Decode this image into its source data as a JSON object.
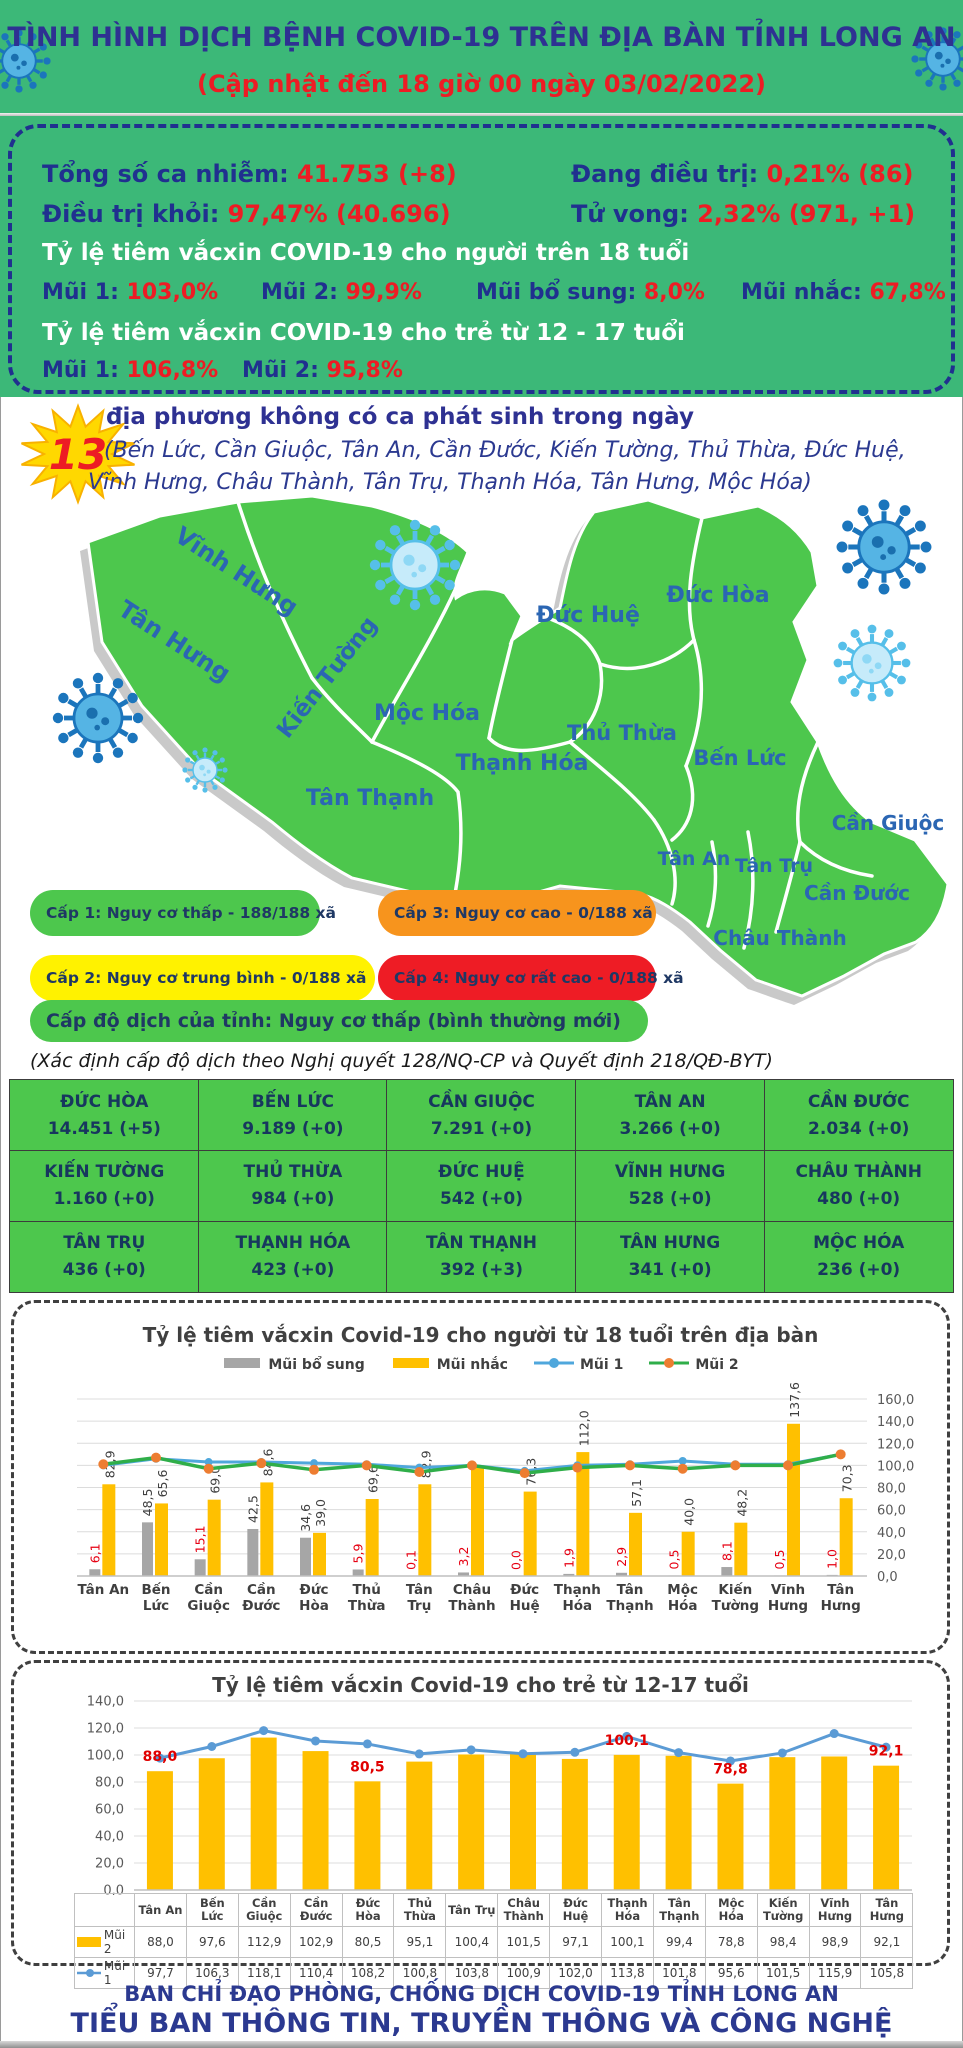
{
  "header": {
    "title": "TÌNH HÌNH DỊCH BỆNH COVID-19 TRÊN ĐỊA BÀN TỈNH LONG AN",
    "subtitle": "(Cập nhật đến 18 giờ 00 ngày 03/02/2022)",
    "bg_color": "#3cb878",
    "title_color": "#2e3192",
    "accent_red": "#ed1c24"
  },
  "stats": {
    "items": [
      {
        "label": "Tổng số ca nhiễm:",
        "value": "41.753 (+8)"
      },
      {
        "label": "Đang điều trị:",
        "value": "0,21% (86)"
      },
      {
        "label": "Điều trị khỏi:",
        "value": "97,47% (40.696)"
      },
      {
        "label": "Tử vong:",
        "value": "2,32% (971, +1)"
      }
    ],
    "adult_title": "Tỷ lệ tiêm vắcxin COVID-19 cho người trên 18 tuổi",
    "adult_doses": [
      {
        "label": "Mũi 1:",
        "value": "103,0%"
      },
      {
        "label": "Mũi 2:",
        "value": "99,9%"
      },
      {
        "label": "Mũi bổ sung:",
        "value": "8,0%"
      },
      {
        "label": "Mũi nhắc:",
        "value": "67,8%"
      }
    ],
    "child_title": "Tỷ lệ tiêm vắcxin COVID-19 cho trẻ từ 12 - 17 tuổi",
    "child_doses": [
      {
        "label": "Mũi 1:",
        "value": "106,8%"
      },
      {
        "label": "Mũi 2:",
        "value": "95,8%"
      }
    ]
  },
  "no_new_cases": {
    "count": "13",
    "title": "địa phương không có ca phát sinh trong ngày",
    "lines": [
      "(Bến Lức, Cần Giuộc, Tân An, Cần Đước, Kiến Tường, Thủ Thừa, Đức Huệ,",
      "Vĩnh Hưng, Châu Thành, Tân Trụ, Thạnh Hóa, Tân Hưng, Mộc Hóa)"
    ]
  },
  "map": {
    "district_labels": [
      "Tân Hưng",
      "Vĩnh Hưng",
      "Kiến Tường",
      "Mộc Hóa",
      "Tân Thạnh",
      "Thạnh Hóa",
      "Đức Huệ",
      "Đức Hòa",
      "Thủ Thừa",
      "Bến Lức",
      "Tân An",
      "Tân Trụ",
      "Châu Thành",
      "Cần Giuộc",
      "Cần Đước"
    ],
    "fill_color": "#4dc74d",
    "label_color": "#2b66b3"
  },
  "risk_legend": {
    "items": [
      {
        "text": "Cấp 1: Nguy cơ thấp - 188/188 xã",
        "color": "#4dc74d"
      },
      {
        "text": "Cấp 3: Nguy cơ cao - 0/188 xã",
        "color": "#f7941d"
      },
      {
        "text": "Cấp 2: Nguy cơ trung bình - 0/188 xã",
        "color": "#fff200"
      },
      {
        "text": "Cấp 4: Nguy cơ rất cao - 0/188 xã",
        "color": "#ee1c25"
      }
    ],
    "overall": {
      "text": "Cấp độ dịch của tỉnh: Nguy cơ thấp (bình thường mới)",
      "color": "#4dc74d"
    },
    "note": "(Xác định cấp độ dịch theo Nghị quyết 128/NQ-CP và Quyết định 218/QĐ-BYT)"
  },
  "district_table": {
    "cells": [
      {
        "name": "ĐỨC HÒA",
        "value": "14.451 (+5)"
      },
      {
        "name": "BẾN LỨC",
        "value": "9.189 (+0)"
      },
      {
        "name": "CẦN GIUỘC",
        "value": "7.291 (+0)"
      },
      {
        "name": "TÂN AN",
        "value": "3.266 (+0)"
      },
      {
        "name": "CẦN ĐƯỚC",
        "value": "2.034 (+0)"
      },
      {
        "name": "KIẾN TƯỜNG",
        "value": "1.160 (+0)"
      },
      {
        "name": "THỦ THỪA",
        "value": "984 (+0)"
      },
      {
        "name": "ĐỨC HUỆ",
        "value": "542 (+0)"
      },
      {
        "name": "VĨNH HƯNG",
        "value": "528 (+0)"
      },
      {
        "name": "CHÂU THÀNH",
        "value": "480 (+0)"
      },
      {
        "name": "TÂN TRỤ",
        "value": "436 (+0)"
      },
      {
        "name": "THẠNH HÓA",
        "value": "423 (+0)"
      },
      {
        "name": "TÂN THẠNH",
        "value": "392 (+3)"
      },
      {
        "name": "TÂN HƯNG",
        "value": "341 (+0)"
      },
      {
        "name": "MỘC HÓA",
        "value": "236 (+0)"
      }
    ]
  },
  "chart_data": [
    {
      "type": "bar+line",
      "title": "Tỷ lệ tiêm vắcxin Covid-19 cho người từ 18 tuổi trên địa bàn",
      "categories": [
        "Tân An",
        "Bến Lức",
        "Cần Giuộc",
        "Cần Đước",
        "Đức Hòa",
        "Thủ Thừa",
        "Tân Trụ",
        "Châu Thành",
        "Đức Huệ",
        "Thạnh Hóa",
        "Tân Thạnh",
        "Mộc Hóa",
        "Kiến Tường",
        "Vĩnh Hưng",
        "Tân Hưng"
      ],
      "ylim": [
        0,
        160
      ],
      "ytick_labels": [
        "0,0",
        "20,0",
        "40,0",
        "60,0",
        "80,0",
        "100,0",
        "120,0",
        "140,0",
        "160,0"
      ],
      "axis_side": "right",
      "grid": true,
      "legend_position": "top",
      "series": [
        {
          "name": "Mũi bổ sung",
          "type": "bar",
          "color": "#A6A6A6",
          "values": [
            6.1,
            48.5,
            15.1,
            42.5,
            34.6,
            5.9,
            0.1,
            3.2,
            0.0,
            1.9,
            2.9,
            0.5,
            8.1,
            0.5,
            1.0
          ],
          "labels": [
            "6,1",
            "48,5",
            "15,1",
            "42,5",
            "34,6",
            "5,9",
            "0,1",
            "3,2",
            "0,0",
            "1,9",
            "2,9",
            "0,5",
            "8,1",
            "0,5",
            "1,0"
          ]
        },
        {
          "name": "Mũi nhắc",
          "type": "bar",
          "color": "#FFC000",
          "values": [
            82.9,
            65.6,
            69.0,
            84.6,
            39.0,
            69.6,
            82.9,
            100.0,
            76.3,
            112.0,
            57.1,
            40.0,
            48.2,
            137.6,
            70.3
          ],
          "labels": [
            "82,9",
            "65,6",
            "69,0",
            "84,6",
            "39,0",
            "69,6",
            "82,9",
            null,
            "76,3",
            "112,0",
            "57,1",
            "40,0",
            "48,2",
            "137,6",
            "70,3"
          ]
        },
        {
          "name": "Mũi 1",
          "type": "line",
          "color": "#4FA7DC",
          "marker_color": "#4FA7DC",
          "estimated": true,
          "values": [
            100,
            106,
            103,
            103,
            102,
            101,
            98,
            100,
            95,
            100,
            101,
            104,
            101,
            101,
            110
          ]
        },
        {
          "name": "Mũi 2",
          "type": "line",
          "color": "#2FAE49",
          "marker_color": "#ED7D31",
          "estimated": true,
          "values": [
            101,
            107,
            97,
            102,
            96,
            100,
            94,
            100,
            93,
            98,
            100,
            97,
            100,
            100,
            110
          ]
        }
      ]
    },
    {
      "type": "bar+line",
      "title": "Tỷ lệ tiêm vắcxin Covid-19 cho trẻ từ 12-17 tuổi",
      "categories": [
        "Tân An",
        "Bến Lức",
        "Cần Giuộc",
        "Cần Đước",
        "Đức Hòa",
        "Thủ Thừa",
        "Tân Trụ",
        "Châu Thành",
        "Đức Huệ",
        "Thạnh Hóa",
        "Tân Thạnh",
        "Mộc Hóa",
        "Kiến Tường",
        "Vĩnh Hưng",
        "Tân Hưng"
      ],
      "ylim": [
        0,
        140
      ],
      "ytick_labels": [
        "0,0",
        "20,0",
        "40,0",
        "60,0",
        "80,0",
        "100,0",
        "120,0",
        "140,0"
      ],
      "axis_side": "left",
      "grid": true,
      "legend_position": "table-left",
      "series": [
        {
          "name": "Mũi 2",
          "type": "bar",
          "color": "#FFC000",
          "values": [
            88.0,
            97.6,
            112.9,
            102.9,
            80.5,
            95.1,
            100.4,
            101.5,
            97.1,
            100.1,
            99.4,
            78.8,
            98.4,
            98.9,
            92.1
          ],
          "display": [
            "88,0",
            "97,6",
            "112,9",
            "102,9",
            "80,5",
            "95,1",
            "100,4",
            "101,5",
            "97,1",
            "100,1",
            "99,4",
            "78,8",
            "98,4",
            "98,9",
            "92,1"
          ]
        },
        {
          "name": "Mũi 1",
          "type": "line",
          "color": "#5B9BD5",
          "marker_color": "#5B9BD5",
          "values": [
            97.7,
            106.3,
            118.1,
            110.4,
            108.2,
            100.8,
            103.8,
            100.9,
            102.0,
            113.8,
            101.8,
            95.6,
            101.5,
            115.9,
            105.8
          ],
          "display": [
            "97,7",
            "106,3",
            "118,1",
            "110,4",
            "108,2",
            "100,8",
            "103,8",
            "100,9",
            "102,0",
            "113,8",
            "101,8",
            "95,6",
            "101,5",
            "115,9",
            "105,8"
          ]
        }
      ],
      "point_labels": [
        {
          "index": 0,
          "text": "88,0"
        },
        {
          "index": 4,
          "text": "80,5"
        },
        {
          "index": 9,
          "text": "100,1"
        },
        {
          "index": 11,
          "text": "78,8"
        },
        {
          "index": 14,
          "text": "92,1"
        }
      ],
      "data_table": {
        "row_headers": [
          "Mũi 2",
          "Mũi 1"
        ]
      }
    }
  ],
  "footer": {
    "line1": "BAN CHỈ ĐẠO PHÒNG, CHỐNG DỊCH COVID-19 TỈNH LONG AN",
    "line2": "TIỂU BAN THÔNG TIN, TRUYỀN THÔNG VÀ CÔNG NGHỆ"
  }
}
